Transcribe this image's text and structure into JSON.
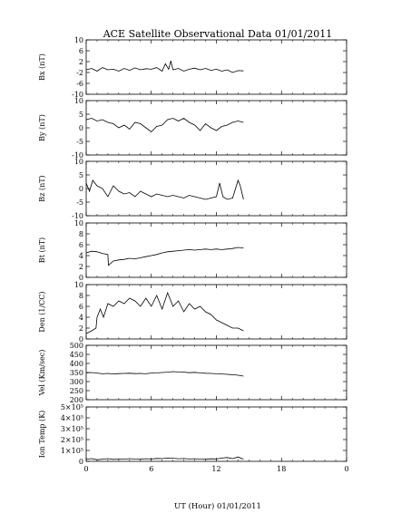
{
  "chart_data": {
    "type": "line",
    "title": "ACE Satellite Observational Data   01/01/2011",
    "xlabel": "UT (Hour)  01/01/2011",
    "x_ticks": [
      "0",
      "6",
      "12",
      "18",
      "0"
    ],
    "xlim": [
      0,
      24
    ],
    "grid": false,
    "panels": [
      {
        "ylabel": "Bx (nT)",
        "ylim": [
          -10,
          10
        ],
        "y_ticks": [
          "10",
          "6",
          "2",
          "-2",
          "-6",
          "-10"
        ],
        "series": [
          {
            "x": [
              0,
              0.5,
              1,
              1.5,
              2,
              2.5,
              3,
              3.5,
              4,
              4.5,
              5,
              5.5,
              6,
              6.5,
              7,
              7.3,
              7.6,
              7.8,
              8,
              8.5,
              9,
              9.5,
              10,
              10.5,
              11,
              11.5,
              12,
              12.5,
              13,
              13.5,
              14,
              14.5
            ],
            "y": [
              -1,
              -0.5,
              -1.5,
              -0.2,
              -1,
              -0.8,
              -1.5,
              -0.5,
              -1.2,
              -0.3,
              -1,
              -0.6,
              -0.8,
              -0.2,
              -1.5,
              1.2,
              -0.8,
              2.3,
              -1,
              -0.5,
              -1.5,
              -0.8,
              -0.4,
              -1,
              -0.5,
              -1.2,
              -0.8,
              -1.5,
              -1,
              -2,
              -1.3,
              -1.4
            ]
          }
        ]
      },
      {
        "ylabel": "By (nT)",
        "ylim": [
          -10,
          10
        ],
        "y_ticks": [
          "10",
          "5",
          "0",
          "-5",
          "-10"
        ],
        "series": [
          {
            "x": [
              0,
              0.5,
              1,
              1.5,
              2,
              2.5,
              3,
              3.5,
              4,
              4.5,
              5,
              5.5,
              6,
              6.5,
              7,
              7.5,
              8,
              8.5,
              9,
              9.5,
              10,
              10.5,
              11,
              11.5,
              12,
              12.5,
              13,
              13.5,
              14,
              14.5
            ],
            "y": [
              3,
              3.5,
              2.5,
              3,
              2,
              1.5,
              0,
              1,
              -0.5,
              2,
              1.5,
              0,
              -1.5,
              0.5,
              1,
              3,
              3.5,
              2.5,
              3.5,
              2,
              1,
              -1,
              1.5,
              0,
              -1,
              0.5,
              1,
              2,
              2.5,
              2
            ]
          }
        ]
      },
      {
        "ylabel": "Bz (nT)",
        "ylim": [
          -10,
          10
        ],
        "y_ticks": [
          "10",
          "5",
          "0",
          "-5",
          "-10"
        ],
        "series": [
          {
            "x": [
              0,
              0.3,
              0.6,
              1,
              1.5,
              2,
              2.5,
              3,
              3.5,
              4,
              4.5,
              5,
              5.5,
              6,
              6.5,
              7,
              7.5,
              8,
              8.5,
              9,
              9.5,
              10,
              10.5,
              11,
              11.5,
              12,
              12.3,
              12.6,
              13,
              13.5,
              14,
              14.2,
              14.5
            ],
            "y": [
              2,
              -1,
              3,
              1,
              0,
              -3,
              1,
              -1,
              -2,
              -1.5,
              -3,
              -1,
              -2,
              -3,
              -2,
              -2.5,
              -3,
              -2.5,
              -3,
              -3.5,
              -2.5,
              -3,
              -3.5,
              -4,
              -3.5,
              -3,
              2,
              -3,
              -4,
              -3.5,
              3,
              1,
              -4
            ]
          }
        ]
      },
      {
        "ylabel": "Bt (nT)",
        "ylim": [
          0,
          10
        ],
        "y_ticks": [
          "10",
          "8",
          "6",
          "4",
          "2",
          "0"
        ],
        "series": [
          {
            "x": [
              0,
              0.5,
              1,
              1.5,
              2,
              2.05,
              2.5,
              3,
              3.5,
              4,
              4.5,
              5,
              5.5,
              6,
              6.5,
              7,
              7.5,
              8,
              8.5,
              9,
              9.5,
              10,
              10.5,
              11,
              11.5,
              12,
              12.5,
              13,
              13.5,
              14,
              14.5
            ],
            "y": [
              4.5,
              4.8,
              4.7,
              4.4,
              4.2,
              2.2,
              3,
              3.2,
              3.3,
              3.5,
              3.4,
              3.6,
              3.8,
              4,
              4.2,
              4.5,
              4.7,
              4.8,
              4.9,
              5,
              5.1,
              5,
              5.1,
              5.2,
              5.1,
              5.2,
              5.1,
              5.2,
              5.3,
              5.5,
              5.4
            ]
          }
        ]
      },
      {
        "ylabel": "Den (1/CC)",
        "ylim": [
          0,
          10
        ],
        "y_ticks": [
          "10",
          "8",
          "6",
          "4",
          "2",
          "0"
        ],
        "series": [
          {
            "x": [
              0,
              0.5,
              0.9,
              1,
              1.3,
              1.6,
              2,
              2.5,
              3,
              3.5,
              4,
              4.5,
              5,
              5.5,
              6,
              6.5,
              7,
              7.5,
              8,
              8.5,
              9,
              9.5,
              10,
              10.5,
              11,
              11.5,
              12,
              12.5,
              13,
              13.5,
              14,
              14.5
            ],
            "y": [
              1,
              1.5,
              2,
              4,
              5.5,
              4,
              6.5,
              6,
              7,
              6.5,
              7.5,
              7,
              6,
              7.5,
              6,
              8,
              5.5,
              8.5,
              6,
              7,
              5,
              6.5,
              5.5,
              6,
              5,
              4.5,
              3.5,
              3,
              2.5,
              2,
              2,
              1.5
            ]
          }
        ]
      },
      {
        "ylabel": "Vel (Km/sec)",
        "ylim": [
          200,
          500
        ],
        "y_ticks": [
          "500",
          "450",
          "400",
          "350",
          "300",
          "250",
          "200"
        ],
        "series": [
          {
            "x": [
              0,
              0.5,
              1,
              1.5,
              2,
              2.5,
              3,
              3.5,
              4,
              4.5,
              5,
              5.5,
              6,
              6.5,
              7,
              7.5,
              8,
              8.5,
              9,
              9.5,
              10,
              10.5,
              11,
              11.5,
              12,
              12.5,
              13,
              13.5,
              14,
              14.5
            ],
            "y": [
              348,
              350,
              347,
              343,
              345,
              342,
              344,
              345,
              346,
              344,
              345,
              343,
              347,
              348,
              350,
              352,
              355,
              353,
              352,
              349,
              351,
              348,
              346,
              345,
              343,
              342,
              340,
              338,
              335,
              330
            ]
          }
        ]
      },
      {
        "ylabel": "Ion Temp (K)",
        "ylim": [
          0,
          500000
        ],
        "y_ticks": [
          "5×10⁵",
          "4×10⁵",
          "3×10⁵",
          "2×10⁵",
          "1×10⁵",
          "0"
        ],
        "series": [
          {
            "x": [
              0,
              0.5,
              1,
              1.5,
              2,
              2.5,
              3,
              3.5,
              4,
              4.5,
              5,
              5.5,
              6,
              6.5,
              7,
              7.5,
              8,
              8.5,
              9,
              9.5,
              10,
              10.5,
              11,
              11.5,
              12,
              12.5,
              13,
              13.5,
              14,
              14.5
            ],
            "y": [
              20000,
              25000,
              15000,
              20000,
              25000,
              18000,
              22000,
              20000,
              25000,
              21000,
              19000,
              24000,
              22000,
              27000,
              25000,
              30000,
              28000,
              24000,
              26000,
              22000,
              24000,
              21000,
              19000,
              23000,
              22000,
              30000,
              35000,
              25000,
              40000,
              20000
            ]
          }
        ]
      }
    ]
  }
}
